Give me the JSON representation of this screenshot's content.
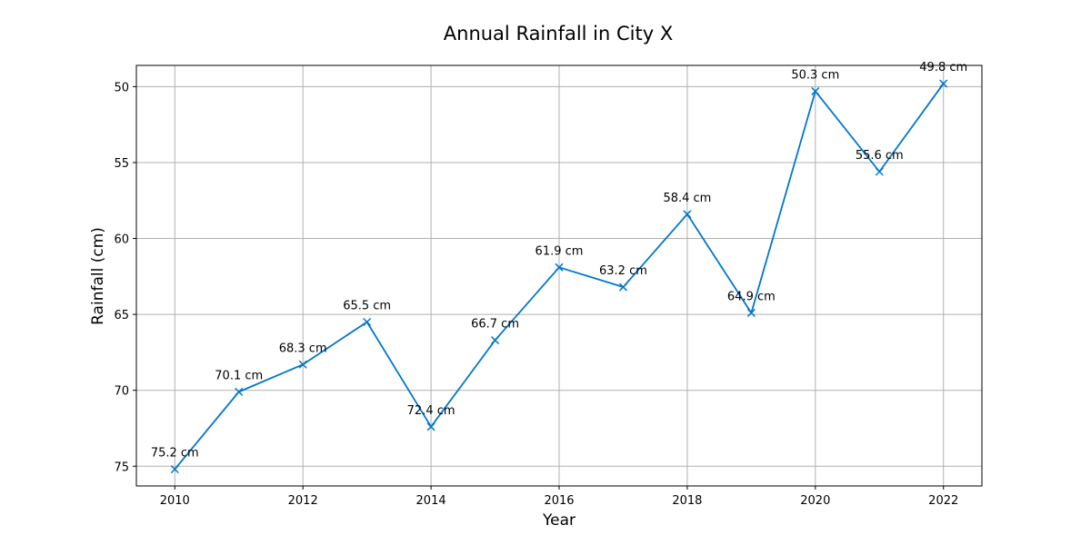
{
  "chart_data": {
    "type": "line",
    "title": "Annual Rainfall in City X",
    "xlabel": "Year",
    "ylabel": "Rainfall (cm)",
    "x": [
      2010,
      2011,
      2012,
      2013,
      2014,
      2015,
      2016,
      2017,
      2018,
      2019,
      2020,
      2021,
      2022
    ],
    "series": [
      {
        "values": [
          75.2,
          70.1,
          68.3,
          65.5,
          72.4,
          66.7,
          61.9,
          63.2,
          58.4,
          64.9,
          50.3,
          55.6,
          49.8
        ],
        "color": "#0077cc",
        "marker": "x"
      }
    ],
    "data_labels": [
      "75.2 cm",
      "70.1 cm",
      "68.3 cm",
      "65.5 cm",
      "72.4 cm",
      "66.7 cm",
      "61.9 cm",
      "63.2 cm",
      "58.4 cm",
      "64.9 cm",
      "50.3 cm",
      "55.6 cm",
      "49.8 cm"
    ],
    "xticks": [
      2010,
      2012,
      2014,
      2016,
      2018,
      2020,
      2022
    ],
    "yticks": [
      50,
      55,
      60,
      65,
      70,
      75
    ],
    "xlim": [
      2009.4,
      2022.6
    ],
    "ylim": [
      76.3,
      48.6
    ],
    "y_inverted": true,
    "grid": true
  }
}
